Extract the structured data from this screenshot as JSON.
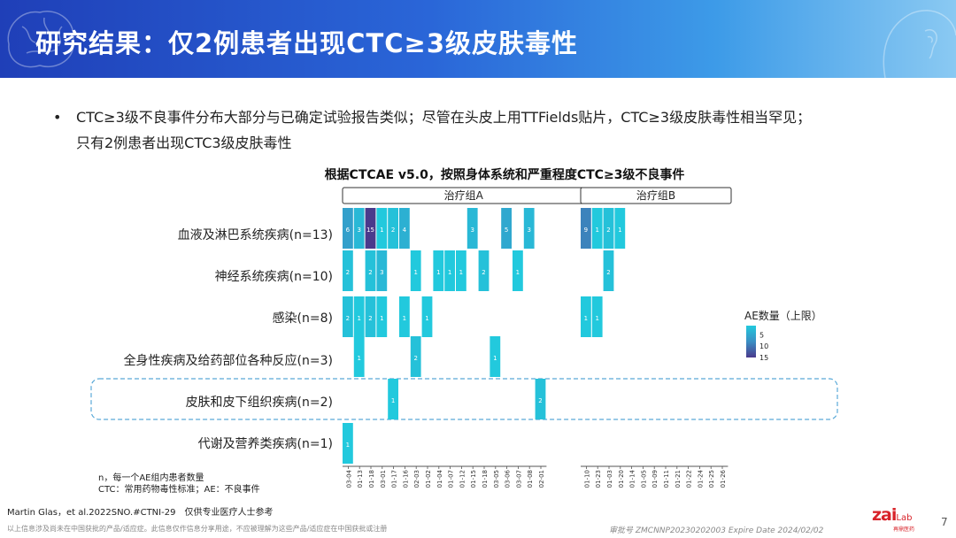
{
  "header": {
    "title": "研究结果：仅2例患者出现CTC≥3级皮肤毒性"
  },
  "bullet": {
    "line1": "CTC≥3级不良事件分布大部分与已确定试验报告类似；尽管在头皮上用TTFields贴片，CTC≥3级皮肤毒性相当罕见；",
    "line2": "只有2例患者出现CTC3级皮肤毒性"
  },
  "chart_data": {
    "type": "heatmap",
    "title": "根据CTCAE v5.0，按照身体系统和严重程度CTC≥3级不良事件",
    "groups": [
      {
        "name": "治疗组A",
        "patients": [
          "03-04",
          "01-13",
          "01-18",
          "03-01",
          "01-17",
          "01-16",
          "02-03",
          "01-02",
          "01-04",
          "01-07",
          "01-12",
          "01-15",
          "01-18",
          "03-05",
          "03-06",
          "03-07",
          "01-08",
          "02-01"
        ]
      },
      {
        "name": "治疗组B",
        "patients": [
          "01-10",
          "01-23",
          "01-03",
          "01-20",
          "01-14",
          "01-05",
          "01-09",
          "01-11",
          "01-21",
          "01-22",
          "01-24",
          "01-25",
          "01-26"
        ]
      }
    ],
    "categories": [
      "血液及淋巴系统疾病(n=13)",
      "神经系统疾病(n=10)",
      "感染(n=8)",
      "全身性疾病及给药部位各种反应(n=3)",
      "皮肤和皮下组织疾病(n=2)",
      "代谢及营养类疾病(n=1)"
    ],
    "cells": [
      {
        "cat": 0,
        "group": 0,
        "patient": 0,
        "value": 6
      },
      {
        "cat": 0,
        "group": 0,
        "patient": 1,
        "value": 3
      },
      {
        "cat": 0,
        "group": 0,
        "patient": 2,
        "value": 15
      },
      {
        "cat": 0,
        "group": 0,
        "patient": 3,
        "value": 1
      },
      {
        "cat": 0,
        "group": 0,
        "patient": 4,
        "value": 2
      },
      {
        "cat": 0,
        "group": 0,
        "patient": 5,
        "value": 4
      },
      {
        "cat": 0,
        "group": 0,
        "patient": 11,
        "value": 3
      },
      {
        "cat": 0,
        "group": 0,
        "patient": 14,
        "value": 5
      },
      {
        "cat": 0,
        "group": 0,
        "patient": 16,
        "value": 3
      },
      {
        "cat": 0,
        "group": 1,
        "patient": 0,
        "value": 9
      },
      {
        "cat": 0,
        "group": 1,
        "patient": 1,
        "value": 1
      },
      {
        "cat": 0,
        "group": 1,
        "patient": 2,
        "value": 2
      },
      {
        "cat": 0,
        "group": 1,
        "patient": 3,
        "value": 1
      },
      {
        "cat": 1,
        "group": 0,
        "patient": 0,
        "value": 2
      },
      {
        "cat": 1,
        "group": 0,
        "patient": 2,
        "value": 2
      },
      {
        "cat": 1,
        "group": 0,
        "patient": 3,
        "value": 3
      },
      {
        "cat": 1,
        "group": 0,
        "patient": 6,
        "value": 1
      },
      {
        "cat": 1,
        "group": 0,
        "patient": 8,
        "value": 1
      },
      {
        "cat": 1,
        "group": 0,
        "patient": 9,
        "value": 1
      },
      {
        "cat": 1,
        "group": 0,
        "patient": 10,
        "value": 1
      },
      {
        "cat": 1,
        "group": 0,
        "patient": 12,
        "value": 2
      },
      {
        "cat": 1,
        "group": 0,
        "patient": 15,
        "value": 1
      },
      {
        "cat": 1,
        "group": 1,
        "patient": 2,
        "value": 2
      },
      {
        "cat": 2,
        "group": 0,
        "patient": 0,
        "value": 2
      },
      {
        "cat": 2,
        "group": 0,
        "patient": 1,
        "value": 1
      },
      {
        "cat": 2,
        "group": 0,
        "patient": 2,
        "value": 2
      },
      {
        "cat": 2,
        "group": 0,
        "patient": 3,
        "value": 1
      },
      {
        "cat": 2,
        "group": 0,
        "patient": 5,
        "value": 1
      },
      {
        "cat": 2,
        "group": 0,
        "patient": 7,
        "value": 1
      },
      {
        "cat": 2,
        "group": 1,
        "patient": 0,
        "value": 1
      },
      {
        "cat": 2,
        "group": 1,
        "patient": 1,
        "value": 1
      },
      {
        "cat": 3,
        "group": 0,
        "patient": 1,
        "value": 1
      },
      {
        "cat": 3,
        "group": 0,
        "patient": 6,
        "value": 2
      },
      {
        "cat": 3,
        "group": 0,
        "patient": 13,
        "value": 1
      },
      {
        "cat": 4,
        "group": 0,
        "patient": 4,
        "value": 1
      },
      {
        "cat": 4,
        "group": 0,
        "patient": 17,
        "value": 2
      },
      {
        "cat": 5,
        "group": 0,
        "patient": 0,
        "value": 1
      }
    ],
    "highlight_category": 4,
    "legend": {
      "title": "AE数量（上限）",
      "ticks": [
        5,
        10,
        15
      ],
      "placement": "right"
    },
    "colorscale": {
      "min": 1,
      "max": 15,
      "low": "#22c9dd",
      "mid": "#3a8fc4",
      "high": "#4a3a8c"
    },
    "notes": [
      "n，每一个AE组内患者数量",
      "CTC：常用药物毒性标准；AE：不良事件"
    ]
  },
  "footer": {
    "reference": "Martin Glas，et al.2022SNO.#CTNI-29　仅供专业医疗人士参考",
    "disclaimer": "以上信息涉及尚未在中国获批的产品/适应症。此信息仅作信息分享用途，不应被理解为这些产品/适应症在中国获批或注册",
    "approval": "审批号 ZMCNNP20230202003 Expire Date 2024/02/02",
    "page": "7"
  },
  "logo": {
    "text_zai": "zai",
    "text_lab": "Lab",
    "text_cn": "再鼎医药"
  },
  "colors": {
    "header_start": "#1f3fb8",
    "header_end": "#8ac9f2",
    "highlight_border": "#5aa9d8",
    "brand_red": "#d8232a"
  }
}
